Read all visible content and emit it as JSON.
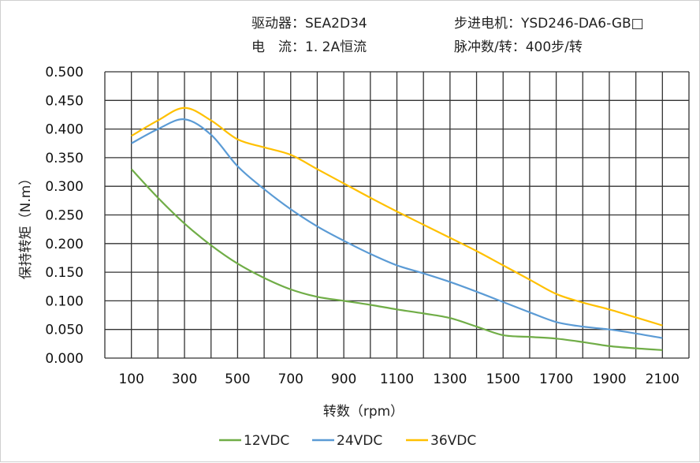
{
  "header": {
    "driver": "驱动器：SEA2D34",
    "motor": "步进电机：YSD246-DA6-GB□",
    "current": "电　流：1. 2A恒流",
    "pulses": "脉冲数/转：400步/转"
  },
  "chart_data": {
    "type": "line",
    "title": "",
    "xlabel": "转数（rpm）",
    "ylabel": "保持转矩（N.m）",
    "xlim": [
      0,
      2200
    ],
    "ylim": [
      0,
      0.5
    ],
    "grid": true,
    "legend_position": "bottom",
    "x_ticks": [
      "100",
      "300",
      "500",
      "700",
      "900",
      "1100",
      "1300",
      "1500",
      "1700",
      "1900",
      "2100"
    ],
    "y_ticks": [
      "0.000",
      "0.050",
      "0.100",
      "0.150",
      "0.200",
      "0.250",
      "0.300",
      "0.350",
      "0.400",
      "0.450",
      "0.500"
    ],
    "x": [
      100,
      200,
      300,
      400,
      500,
      600,
      700,
      800,
      900,
      1000,
      1100,
      1200,
      1300,
      1400,
      1500,
      1600,
      1700,
      1800,
      1900,
      2000,
      2100
    ],
    "series": [
      {
        "name": "12VDC",
        "color": "#70ad47",
        "values": [
          0.33,
          0.28,
          0.235,
          0.197,
          0.165,
          0.14,
          0.12,
          0.107,
          0.1,
          0.093,
          0.085,
          0.078,
          0.07,
          0.055,
          0.04,
          0.037,
          0.034,
          0.028,
          0.021,
          0.017,
          0.014
        ]
      },
      {
        "name": "24VDC",
        "color": "#5b9bd5",
        "values": [
          0.375,
          0.4,
          0.417,
          0.39,
          0.335,
          0.295,
          0.26,
          0.23,
          0.205,
          0.182,
          0.162,
          0.148,
          0.133,
          0.116,
          0.098,
          0.08,
          0.063,
          0.055,
          0.05,
          0.043,
          0.035
        ]
      },
      {
        "name": "36VDC",
        "color": "#ffc000",
        "values": [
          0.388,
          0.415,
          0.437,
          0.415,
          0.382,
          0.368,
          0.355,
          0.33,
          0.305,
          0.28,
          0.256,
          0.233,
          0.21,
          0.187,
          0.162,
          0.137,
          0.112,
          0.097,
          0.085,
          0.071,
          0.057
        ]
      }
    ]
  }
}
